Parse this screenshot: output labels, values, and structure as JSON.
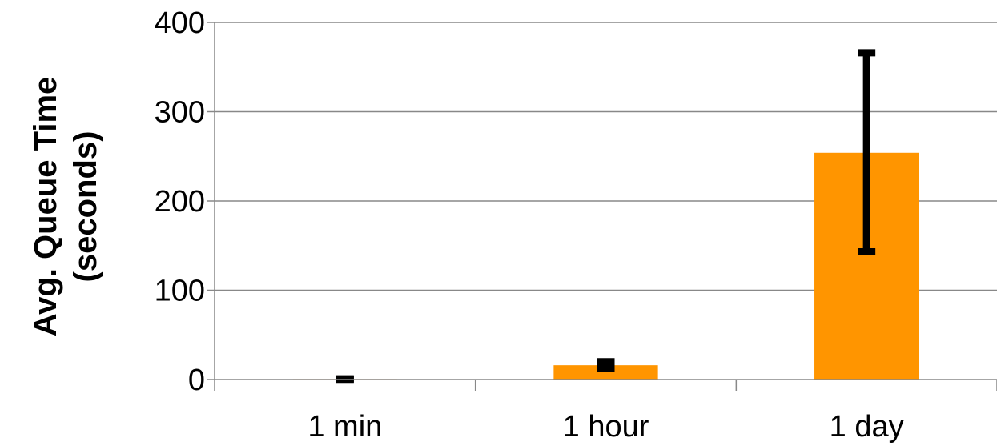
{
  "chart_data": {
    "type": "bar",
    "categories": [
      "1 min",
      "1 hour",
      "1 day"
    ],
    "values": [
      0.5,
      16,
      254
    ],
    "error_low": [
      0.2,
      13,
      143
    ],
    "error_high": [
      0.8,
      20,
      366
    ],
    "ylim": [
      0,
      400
    ],
    "yticks": [
      "0",
      "100",
      "200",
      "300",
      "400"
    ],
    "ylabel_line1": "Avg. Queue Time",
    "ylabel_line2": "(seconds)",
    "xlabel": "",
    "title": "",
    "grid": true,
    "legend": "none",
    "colors": {
      "bar": "#ff9500",
      "error_bar": "#000000",
      "grid": "#888888",
      "axis": "#888888"
    }
  }
}
